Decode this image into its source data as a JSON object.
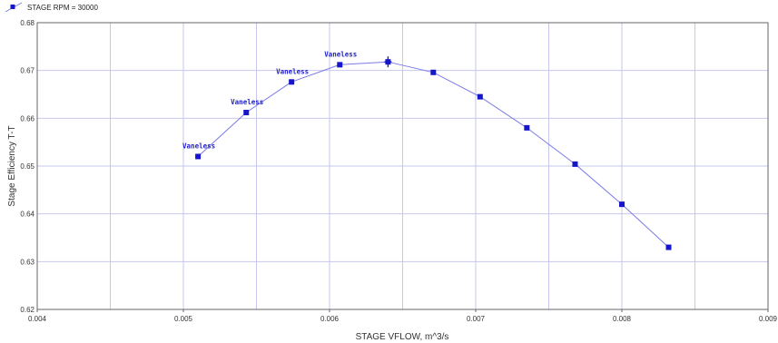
{
  "legend": {
    "label": "STAGE RPM = 30000"
  },
  "colors": {
    "series": "#1515cc",
    "line": "#7a7ae6",
    "grid": "#c7c7ee",
    "frame": "#666666"
  },
  "chart_data": {
    "type": "line",
    "xlabel": "STAGE VFLOW, m^3/s",
    "ylabel": "Stage Efficiency  T-T",
    "xlim": [
      0.004,
      0.009
    ],
    "ylim": [
      0.62,
      0.68
    ],
    "xticks": [
      "0.004",
      "0.005",
      "0.006",
      "0.007",
      "0.008",
      "0.009"
    ],
    "yticks": [
      "0.62",
      "0.63",
      "0.64",
      "0.65",
      "0.66",
      "0.67",
      "0.68"
    ],
    "grid": true,
    "legend_position": "top-left",
    "series": [
      {
        "name": "STAGE RPM = 30000",
        "x": [
          0.0051,
          0.00543,
          0.00574,
          0.00607,
          0.0064,
          0.00671,
          0.00703,
          0.00735,
          0.00768,
          0.008,
          0.00832
        ],
        "y": [
          0.652,
          0.6612,
          0.6676,
          0.6712,
          0.6718,
          0.6696,
          0.6645,
          0.658,
          0.6504,
          0.642,
          0.633
        ]
      }
    ],
    "marker_point": {
      "x": 0.0064,
      "y": 0.6718
    },
    "annotations": [
      {
        "text": "Vaneless",
        "x": 0.0051,
        "y": 0.652
      },
      {
        "text": "Vaneless",
        "x": 0.00543,
        "y": 0.6612
      },
      {
        "text": "Vaneless",
        "x": 0.00574,
        "y": 0.6676
      },
      {
        "text": "Vaneless",
        "x": 0.00607,
        "y": 0.6712
      }
    ]
  }
}
